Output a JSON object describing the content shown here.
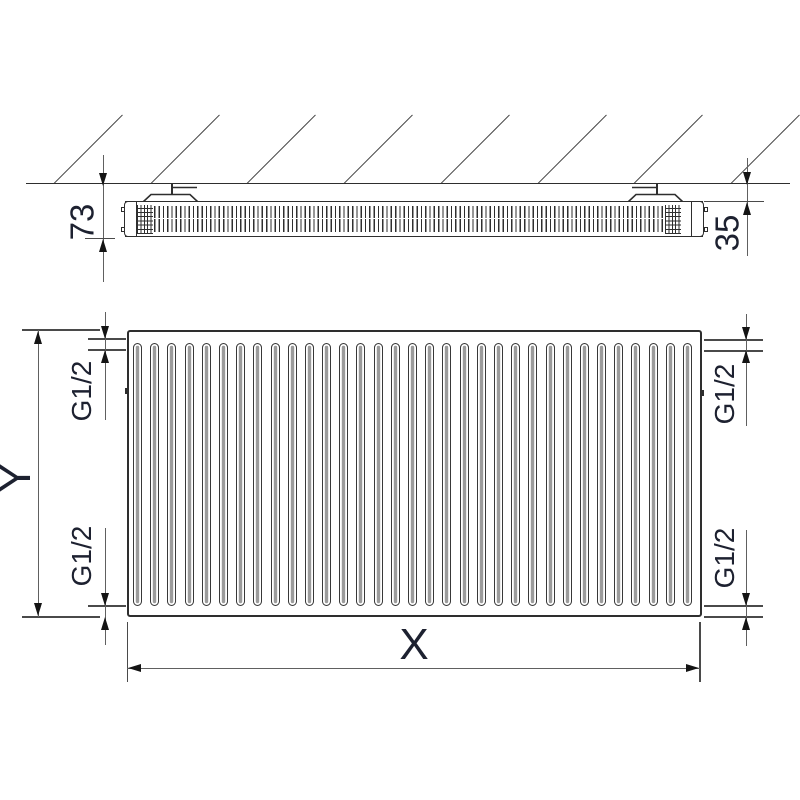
{
  "colors": {
    "ink": "#2e2e2e",
    "dim": "#606060",
    "text": "#1d2130",
    "bg": "#ffffff"
  },
  "top_view": {
    "depth_label": "73",
    "wall_gap_label": "35"
  },
  "front_view": {
    "height_label": "Y",
    "width_label": "X",
    "threads": {
      "top_left": "G1/2",
      "bottom_left": "G1/2",
      "top_right": "G1/2",
      "bottom_right": "G1/2"
    }
  }
}
